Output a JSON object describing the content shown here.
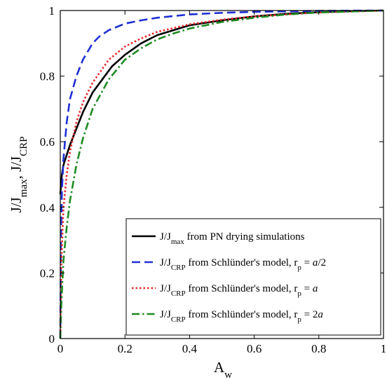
{
  "chart_data": {
    "type": "line",
    "title": "",
    "xlabel": "A",
    "xlabel_sub": "w",
    "ylabel_parts": [
      {
        "text": "J/J"
      },
      {
        "text": "max",
        "sub": true
      },
      {
        "text": ", J/J"
      },
      {
        "text": "CRP",
        "sub": true
      }
    ],
    "xlim": [
      0,
      1
    ],
    "ylim": [
      0,
      1
    ],
    "xticks": [
      0,
      0.2,
      0.4,
      0.6,
      0.8,
      1
    ],
    "xtick_labels": [
      "0",
      "0.2",
      "0.4",
      "0.6",
      "0.8",
      "1"
    ],
    "yticks": [
      0,
      0.2,
      0.4,
      0.6,
      0.8,
      1
    ],
    "ytick_labels": [
      "0",
      "0.2",
      "0.4",
      "0.6",
      "0.8",
      "1"
    ],
    "grid": false,
    "legend_position": "bottom-right",
    "series": [
      {
        "name": "J/Jmax from PN drying simulations",
        "legend": [
          {
            "text": "J/J"
          },
          {
            "text": "max",
            "sub": true
          },
          {
            "text": " from PN drying simulations"
          }
        ],
        "color": "#000000",
        "style": "solid",
        "x": [
          0,
          0.005,
          0.01,
          0.02,
          0.03,
          0.05,
          0.07,
          0.1,
          0.13,
          0.16,
          0.2,
          0.25,
          0.3,
          0.35,
          0.4,
          0.5,
          0.6,
          0.7,
          0.8,
          0.9,
          1.0
        ],
        "y": [
          0.44,
          0.5,
          0.53,
          0.56,
          0.59,
          0.64,
          0.69,
          0.75,
          0.79,
          0.83,
          0.865,
          0.9,
          0.925,
          0.94,
          0.955,
          0.97,
          0.982,
          0.99,
          0.995,
          0.998,
          1.0
        ]
      },
      {
        "name": "J/JCRP from Schlünder's model, rp = a/2",
        "legend": [
          {
            "text": "J/J"
          },
          {
            "text": "CRP",
            "sub": true
          },
          {
            "text": " from Schlünder's model, r"
          },
          {
            "text": "p",
            "sub": true
          },
          {
            "text": " = "
          },
          {
            "text": "a",
            "italic": true
          },
          {
            "text": "/2"
          }
        ],
        "color": "#1f2fd6",
        "style": "dashed",
        "x": [
          0,
          0.002,
          0.005,
          0.01,
          0.02,
          0.03,
          0.05,
          0.07,
          0.1,
          0.12,
          0.15,
          0.2,
          0.25,
          0.3,
          0.4,
          0.5,
          0.6,
          0.8,
          1.0
        ],
        "y": [
          0,
          0.3,
          0.45,
          0.55,
          0.66,
          0.73,
          0.8,
          0.85,
          0.9,
          0.92,
          0.94,
          0.96,
          0.97,
          0.978,
          0.988,
          0.993,
          0.996,
          0.999,
          1.0
        ]
      },
      {
        "name": "J/JCRP from Schlünder's model, rp = a",
        "legend": [
          {
            "text": "J/J"
          },
          {
            "text": "CRP",
            "sub": true
          },
          {
            "text": " from Schlünder's model, r"
          },
          {
            "text": "p",
            "sub": true
          },
          {
            "text": " = "
          },
          {
            "text": "a",
            "italic": true
          }
        ],
        "color": "#e8262a",
        "style": "dotted",
        "x": [
          0,
          0.003,
          0.007,
          0.01,
          0.02,
          0.03,
          0.05,
          0.07,
          0.1,
          0.15,
          0.2,
          0.25,
          0.3,
          0.4,
          0.5,
          0.6,
          0.8,
          1.0
        ],
        "y": [
          0,
          0.22,
          0.33,
          0.4,
          0.5,
          0.57,
          0.66,
          0.72,
          0.78,
          0.85,
          0.89,
          0.915,
          0.935,
          0.958,
          0.972,
          0.982,
          0.994,
          1.0
        ]
      },
      {
        "name": "J/JCRP from Schlünder's model, rp = 2a",
        "legend": [
          {
            "text": "J/J"
          },
          {
            "text": "CRP",
            "sub": true
          },
          {
            "text": " from Schlünder's model, r"
          },
          {
            "text": "p",
            "sub": true
          },
          {
            "text": " = 2"
          },
          {
            "text": "a",
            "italic": true
          }
        ],
        "color": "#1e8a22",
        "style": "dashdot",
        "x": [
          0,
          0.003,
          0.007,
          0.01,
          0.02,
          0.03,
          0.05,
          0.07,
          0.1,
          0.15,
          0.2,
          0.25,
          0.3,
          0.35,
          0.4,
          0.5,
          0.6,
          0.7,
          0.8,
          1.0
        ],
        "y": [
          0,
          0.1,
          0.18,
          0.24,
          0.34,
          0.42,
          0.53,
          0.61,
          0.7,
          0.79,
          0.85,
          0.885,
          0.912,
          0.93,
          0.945,
          0.965,
          0.978,
          0.988,
          0.994,
          1.0
        ]
      }
    ]
  }
}
